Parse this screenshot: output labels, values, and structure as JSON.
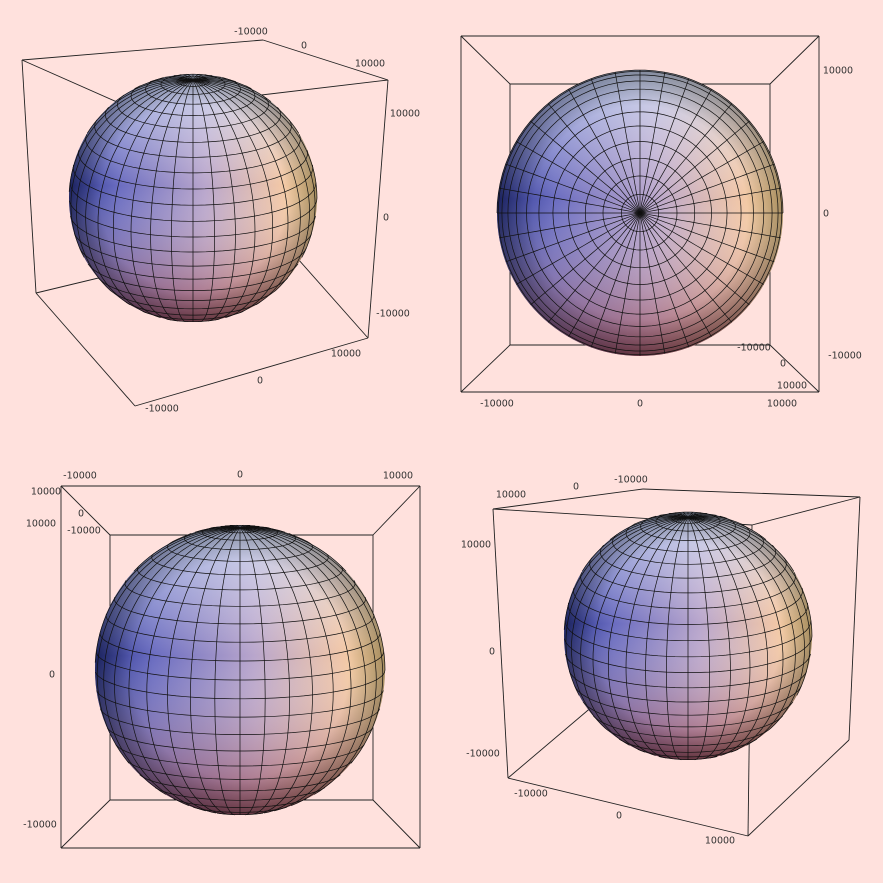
{
  "panels": [
    {
      "labels": [
        "-10000",
        "0",
        "10000",
        "10000",
        "0",
        "-10000",
        "10000",
        "0",
        "-10000"
      ]
    },
    {
      "labels": [
        "10000",
        "0",
        "-10000",
        "-10000",
        "0",
        "10000",
        "-10000",
        "0",
        "10000"
      ]
    },
    {
      "labels": [
        "-10000",
        "0",
        "10000",
        "10000",
        "0",
        "10000",
        "-10000",
        "0",
        "-10000"
      ]
    },
    {
      "labels": [
        "10000",
        "0",
        "-10000",
        "10000",
        "0",
        "-10000",
        "-10000",
        "0",
        "10000"
      ]
    }
  ]
}
